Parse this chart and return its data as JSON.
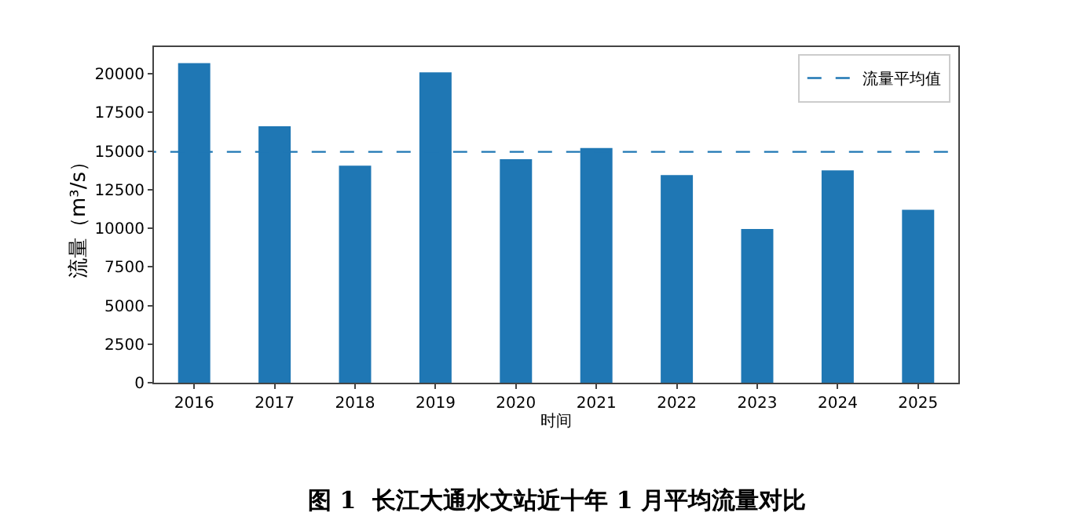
{
  "chart_data": {
    "type": "bar",
    "xlabel": "时间",
    "ylabel": "流量（m³/s）",
    "categories": [
      "2016",
      "2017",
      "2018",
      "2019",
      "2020",
      "2021",
      "2022",
      "2023",
      "2024",
      "2025"
    ],
    "values": [
      20700,
      16600,
      14050,
      20100,
      14470,
      15200,
      13450,
      9950,
      13750,
      11200
    ],
    "color": "#1f77b4",
    "ylim": [
      0,
      21735
    ],
    "yticks": [
      0,
      2500,
      5000,
      7500,
      10000,
      12500,
      15000,
      17500,
      20000
    ],
    "ref_lines": [
      {
        "axis": "y",
        "value": 14947,
        "label": "流量平均值",
        "color": "#1f77b4",
        "line_style": "dashed"
      }
    ],
    "legend": "top right",
    "grid": false,
    "annotations": [
      "图 1  长江大通水文站近十年 1 月平均流量对比"
    ]
  }
}
